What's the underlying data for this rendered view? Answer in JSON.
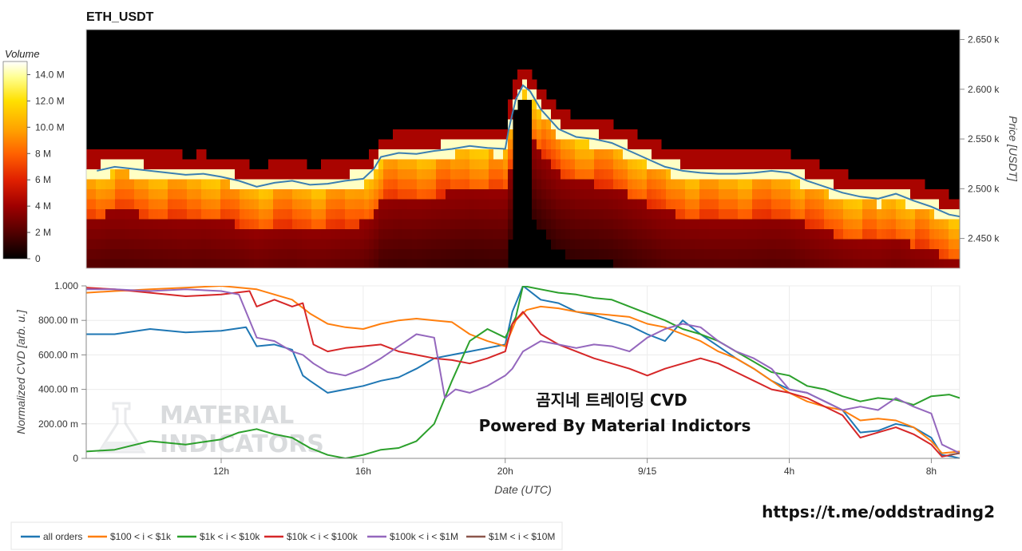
{
  "chart_data": [
    {
      "type": "heatmap",
      "title": "ETH_USDT",
      "ylabel": "Price [USDT]",
      "ylim": [
        2420,
        2660
      ],
      "yticks": [
        "2.450 k",
        "2.500 k",
        "2.550 k",
        "2.600 k",
        "2.650 k"
      ],
      "ytick_values": [
        2450,
        2500,
        2550,
        2600,
        2650
      ],
      "colorbar": {
        "title": "Volume",
        "range": [
          0,
          15
        ],
        "ticks": [
          "0",
          "2 M",
          "4 M",
          "6 M",
          "8 M",
          "10.0 M",
          "12.0 M",
          "14.0 M"
        ],
        "tick_values": [
          0,
          2,
          4,
          6,
          8,
          10,
          12,
          14
        ],
        "colormap": [
          "#000000",
          "#500000",
          "#a00000",
          "#e02000",
          "#ff6000",
          "#ffa000",
          "#ffe000",
          "#ffff90",
          "#ffffff"
        ]
      },
      "price_line": {
        "color": "#3c7fb1",
        "x_hours": [
          8.5,
          9,
          9.5,
          10,
          10.5,
          11,
          11.5,
          12,
          12.5,
          13,
          13.5,
          14,
          14.5,
          15,
          15.5,
          16,
          16.3,
          16.5,
          17,
          17.5,
          18,
          18.5,
          19,
          19.5,
          20,
          20.1,
          20.3,
          20.5,
          20.7,
          21,
          21.5,
          22,
          22.5,
          23,
          23.5,
          24,
          24.5,
          25,
          25.5,
          26,
          26.5,
          27,
          27.5,
          28,
          28.5,
          29,
          29.5,
          30,
          30.5,
          31,
          31.5,
          32,
          32.5,
          32.8
        ],
        "y": [
          2518,
          2522,
          2520,
          2518,
          2516,
          2514,
          2515,
          2512,
          2508,
          2502,
          2506,
          2508,
          2504,
          2505,
          2508,
          2510,
          2520,
          2532,
          2536,
          2535,
          2538,
          2540,
          2543,
          2541,
          2540,
          2560,
          2590,
          2604,
          2598,
          2580,
          2560,
          2552,
          2550,
          2546,
          2538,
          2530,
          2522,
          2518,
          2516,
          2515,
          2515,
          2516,
          2518,
          2516,
          2508,
          2502,
          2496,
          2492,
          2490,
          2495,
          2488,
          2482,
          2474,
          2472
        ]
      }
    },
    {
      "type": "line",
      "xlabel": "Date (UTC)",
      "ylabel": "Normalized CVD [arb. u.]",
      "ylim": [
        0,
        1
      ],
      "yticks": [
        "0",
        "200.00 m",
        "400.00 m",
        "600.00 m",
        "800.00 m",
        "1.000"
      ],
      "ytick_values": [
        0,
        0.2,
        0.4,
        0.6,
        0.8,
        1.0
      ],
      "xlim_hours": [
        8.2,
        32.8
      ],
      "xticks": [
        "12h",
        "16h",
        "20h",
        "9/15",
        "4h",
        "8h"
      ],
      "xtick_hours": [
        12,
        16,
        20,
        24,
        28,
        32
      ],
      "series": [
        {
          "name": "all orders",
          "color": "#1f77b4",
          "x": [
            8.2,
            9,
            10,
            11,
            12,
            12.7,
            13,
            13.5,
            14,
            14.3,
            14.5,
            15,
            15.5,
            16,
            16.5,
            17,
            17.5,
            18,
            18.5,
            19,
            19.5,
            20,
            20.2,
            20.5,
            21,
            21.5,
            22,
            22.5,
            23,
            23.5,
            24,
            24.5,
            25,
            25.5,
            26,
            26.5,
            27,
            27.5,
            28,
            28.5,
            29,
            29.5,
            30,
            30.5,
            31,
            31.5,
            32,
            32.3,
            32.6,
            32.8
          ],
          "y": [
            0.72,
            0.72,
            0.75,
            0.73,
            0.74,
            0.76,
            0.65,
            0.66,
            0.63,
            0.48,
            0.45,
            0.38,
            0.4,
            0.42,
            0.45,
            0.47,
            0.52,
            0.58,
            0.6,
            0.62,
            0.64,
            0.66,
            0.85,
            1.0,
            0.92,
            0.9,
            0.85,
            0.83,
            0.8,
            0.77,
            0.72,
            0.68,
            0.8,
            0.72,
            0.65,
            0.58,
            0.52,
            0.45,
            0.4,
            0.38,
            0.33,
            0.28,
            0.15,
            0.16,
            0.2,
            0.18,
            0.12,
            0.02,
            0.01,
            0.0
          ]
        },
        {
          "name": "$100 < i < $1k",
          "color": "#ff7f0e",
          "x": [
            8.2,
            9,
            10,
            11,
            12,
            13,
            13.5,
            14,
            14.5,
            15,
            15.5,
            16,
            16.5,
            17,
            17.5,
            18,
            18.5,
            19,
            19.5,
            20,
            20.3,
            20.6,
            21,
            21.5,
            22,
            22.5,
            23,
            23.5,
            24,
            24.5,
            25,
            25.5,
            26,
            26.5,
            27,
            27.5,
            28,
            28.5,
            29,
            29.5,
            30,
            30.5,
            31,
            31.5,
            32,
            32.3,
            32.8
          ],
          "y": [
            0.96,
            0.97,
            0.98,
            0.99,
            1.0,
            0.98,
            0.95,
            0.92,
            0.84,
            0.78,
            0.76,
            0.75,
            0.78,
            0.8,
            0.81,
            0.8,
            0.79,
            0.72,
            0.68,
            0.65,
            0.8,
            0.86,
            0.88,
            0.87,
            0.85,
            0.84,
            0.83,
            0.82,
            0.78,
            0.76,
            0.72,
            0.68,
            0.62,
            0.58,
            0.52,
            0.45,
            0.38,
            0.33,
            0.3,
            0.28,
            0.22,
            0.23,
            0.22,
            0.18,
            0.1,
            0.03,
            0.04
          ]
        },
        {
          "name": "$1k < i < $10k",
          "color": "#2ca02c",
          "x": [
            8.2,
            9,
            10,
            11,
            12,
            12.5,
            13,
            13.5,
            14,
            14.5,
            15,
            15.5,
            16,
            16.5,
            17,
            17.5,
            18,
            18.5,
            19,
            19.5,
            20,
            20.3,
            20.5,
            21,
            21.5,
            22,
            22.5,
            23,
            23.5,
            24,
            24.5,
            25,
            25.5,
            26,
            26.5,
            27,
            27.5,
            28,
            28.5,
            29,
            29.5,
            30,
            30.5,
            31,
            31.5,
            32,
            32.5,
            32.8
          ],
          "y": [
            0.04,
            0.05,
            0.1,
            0.08,
            0.11,
            0.15,
            0.17,
            0.14,
            0.12,
            0.06,
            0.02,
            0.0,
            0.02,
            0.05,
            0.06,
            0.1,
            0.2,
            0.45,
            0.68,
            0.75,
            0.7,
            0.82,
            1.0,
            0.98,
            0.96,
            0.95,
            0.93,
            0.92,
            0.88,
            0.84,
            0.8,
            0.75,
            0.72,
            0.68,
            0.62,
            0.56,
            0.5,
            0.48,
            0.42,
            0.4,
            0.36,
            0.33,
            0.35,
            0.34,
            0.31,
            0.36,
            0.37,
            0.35
          ]
        },
        {
          "name": "$10k < i < $100k",
          "color": "#d62728",
          "x": [
            8.2,
            9,
            10,
            11,
            12,
            12.8,
            13,
            13.5,
            14,
            14.3,
            14.6,
            15,
            15.5,
            16,
            16.5,
            17,
            17.5,
            18,
            18.5,
            19,
            19.5,
            20,
            20.2,
            20.5,
            21,
            21.5,
            22,
            22.5,
            23,
            23.5,
            24,
            24.5,
            25,
            25.5,
            26,
            26.5,
            27,
            27.5,
            28,
            28.5,
            29,
            29.5,
            30,
            30.5,
            31,
            31.5,
            32,
            32.3,
            32.8
          ],
          "y": [
            0.99,
            0.98,
            0.96,
            0.94,
            0.95,
            0.97,
            0.88,
            0.92,
            0.88,
            0.9,
            0.66,
            0.62,
            0.64,
            0.65,
            0.66,
            0.62,
            0.6,
            0.58,
            0.57,
            0.55,
            0.58,
            0.62,
            0.78,
            0.85,
            0.72,
            0.66,
            0.62,
            0.58,
            0.55,
            0.52,
            0.48,
            0.52,
            0.55,
            0.58,
            0.55,
            0.5,
            0.45,
            0.4,
            0.38,
            0.35,
            0.3,
            0.25,
            0.12,
            0.15,
            0.18,
            0.14,
            0.08,
            0.01,
            0.03
          ]
        },
        {
          "name": "$100k < i < $1M",
          "color": "#9467bd",
          "x": [
            8.2,
            9,
            10,
            11,
            12,
            12.5,
            13,
            13.5,
            14,
            14.3,
            14.6,
            15,
            15.5,
            16,
            16.5,
            17,
            17.5,
            18,
            18.3,
            18.6,
            19,
            19.5,
            20,
            20.2,
            20.5,
            21,
            21.5,
            22,
            22.5,
            23,
            23.5,
            24,
            24.5,
            25,
            25.5,
            26,
            26.5,
            27,
            27.5,
            28,
            28.5,
            29,
            29.5,
            30,
            30.5,
            31,
            31.5,
            32,
            32.3,
            32.8
          ],
          "y": [
            0.98,
            0.98,
            0.97,
            0.98,
            0.97,
            0.95,
            0.7,
            0.68,
            0.62,
            0.6,
            0.55,
            0.5,
            0.48,
            0.52,
            0.58,
            0.65,
            0.72,
            0.7,
            0.35,
            0.4,
            0.38,
            0.42,
            0.48,
            0.52,
            0.62,
            0.68,
            0.66,
            0.64,
            0.66,
            0.65,
            0.62,
            0.7,
            0.75,
            0.78,
            0.76,
            0.68,
            0.62,
            0.58,
            0.52,
            0.4,
            0.38,
            0.33,
            0.28,
            0.3,
            0.28,
            0.35,
            0.3,
            0.26,
            0.08,
            0.03
          ]
        },
        {
          "name": "$1M < i < $10M",
          "color": "#8c564b",
          "x": [
            32.5,
            32.8
          ],
          "y": [
            0.02,
            0.03
          ]
        }
      ]
    }
  ],
  "overlay": {
    "line1": "곰지네 트레이딩 CVD",
    "line2": "Powered By Material Indictors"
  },
  "watermark": {
    "line1": "MATERIAL",
    "line2": "INDICATORS"
  },
  "link": "https://t.me/oddstrading2"
}
